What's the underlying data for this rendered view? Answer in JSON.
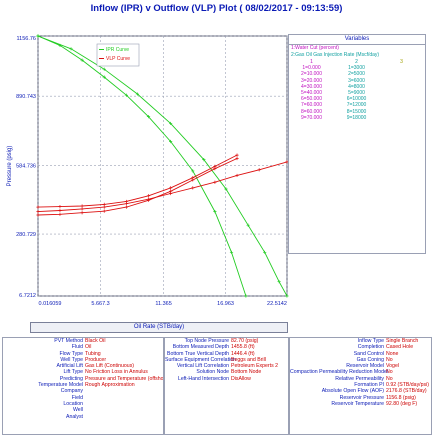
{
  "title": "Inflow (IPR) v Outflow (VLP) Plot ( 08/02/2017 - 09:13:59)",
  "x_axis_title": "Oil Rate (STB/day)",
  "y_axis_title": "Pressure (psig)",
  "legend": [
    {
      "label": "IPR Curve",
      "color": "#22cc22"
    },
    {
      "label": "VLP Curve",
      "color": "#dd1111"
    }
  ],
  "variables_panel": {
    "heading": "Variables",
    "line1": "1:Water Cut (percent)",
    "line2": "2:Gas Oil Gas Injection Rate (Mscf/day)",
    "columns": [
      "1",
      "2",
      "3"
    ],
    "rows": [
      [
        "1=0.000",
        "1=3000"
      ],
      [
        "2=10.000",
        "2=5000"
      ],
      [
        "3=20.000",
        "3=6000"
      ],
      [
        "4=30.000",
        "4=8000"
      ],
      [
        "5=40.000",
        "5=9000"
      ],
      [
        "6=50.000",
        "6=10000"
      ],
      [
        "7=60.000",
        "7=12000"
      ],
      [
        "8=60.000",
        "8=15000"
      ],
      [
        "9=70.000",
        "9=18000"
      ]
    ]
  },
  "info_boxes": {
    "left": [
      {
        "label": "PVT Method",
        "value": "Black Oil"
      },
      {
        "label": "Fluid",
        "value": "Oil"
      },
      {
        "label": "Flow Type",
        "value": "Tubing"
      },
      {
        "label": "Well Type",
        "value": "Producer"
      },
      {
        "label": "Artificial Lift",
        "value": "Gas Lift (Continuous)"
      },
      {
        "label": "Lift Type",
        "value": "No Friction Loss in Annulus"
      },
      {
        "label": "Predicting",
        "value": "Pressure and Temperature (offshore)"
      },
      {
        "label": "Temperature Model",
        "value": "Rough Approximation"
      },
      {
        "label": "Company",
        "value": ""
      },
      {
        "label": "Field",
        "value": ""
      },
      {
        "label": "Location",
        "value": ""
      },
      {
        "label": "Well",
        "value": ""
      },
      {
        "label": "Analyst",
        "value": ""
      }
    ],
    "middle": [
      {
        "label": "Top Node Pressure",
        "value": "82.70 (psig)"
      },
      {
        "label": "Bottom Measured Depth",
        "value": "1455.8 (ft)"
      },
      {
        "label": "Bottom True Vertical Depth",
        "value": "1446.4 (ft)"
      },
      {
        "label": "Surface Equipment Correlation",
        "value": "Beggs and Brill"
      },
      {
        "label": "Vertical Lift Correlation",
        "value": "Petroleum Experts 2"
      },
      {
        "label": "Solution Node",
        "value": "Bottom Node"
      },
      {
        "label": "Left-Hand Intersection",
        "value": "DisAllow"
      }
    ],
    "right": [
      {
        "label": "Inflow Type",
        "value": "Single Branch"
      },
      {
        "label": "Completion",
        "value": "Cased Hole"
      },
      {
        "label": "Sand Control",
        "value": "None"
      },
      {
        "label": "Gas Coning",
        "value": "No"
      },
      {
        "label": "Reservoir Model",
        "value": "Vogel"
      },
      {
        "label": "Compaction Permeability Reduction Model",
        "value": "No"
      },
      {
        "label": "Relative Permeability",
        "value": "No"
      },
      {
        "label": "Formation PI",
        "value": "0.92 (STB/day/psi)"
      },
      {
        "label": "Absolute Open Flow (AOF)",
        "value": "2176.8 (STB/day)"
      },
      {
        "label": "Reservoir Pressure",
        "value": "1156.8 (psig)"
      },
      {
        "label": "Reservoir Temperature",
        "value": "92.80 (deg F)"
      }
    ]
  },
  "chart_data": {
    "type": "line",
    "title": "Inflow (IPR) v Outflow (VLP) Plot ( 08/02/2017 - 09:13:59)",
    "xlabel": "Oil Rate (STB/day)",
    "ylabel": "Pressure (psig)",
    "xlim": [
      0.016059,
      22.5142
    ],
    "ylim": [
      6.7212,
      1156.76
    ],
    "x_tick_labels": [
      "0.016059",
      "5.667.3",
      "11.365",
      "16.963",
      "22.5142"
    ],
    "x_tick_values": [
      0.016059,
      5.6673,
      11.365,
      16.963,
      22.5142
    ],
    "y_tick_labels": [
      "1156.76",
      "890.743",
      "584.736",
      "280.729",
      "6.7212"
    ],
    "y_tick_values": [
      1156.76,
      890.743,
      584.736,
      280.729,
      6.7212
    ],
    "grid": true,
    "legend_position": "top-left",
    "series": [
      {
        "name": "IPR Curve",
        "color": "#22cc22",
        "x": [
          0.016,
          2.0,
          4.0,
          6.0,
          8.0,
          10.0,
          12.0,
          14.0,
          16.0,
          17.5,
          18.8
        ],
        "y": [
          1156.76,
          1115,
          1050,
          975,
          895,
          800,
          690,
          560,
          380,
          200,
          6.72
        ]
      },
      {
        "name": "IPR Curve",
        "color": "#22cc22",
        "x": [
          0.016,
          3.0,
          6.0,
          9.0,
          12.0,
          15.0,
          17.0,
          19.0,
          20.5,
          21.8,
          22.51
        ],
        "y": [
          1156.76,
          1100,
          1010,
          900,
          770,
          610,
          480,
          320,
          200,
          70,
          6.72
        ]
      },
      {
        "name": "VLP Curve",
        "color": "#dd1111",
        "x": [
          0.016,
          2.0,
          4.0,
          6.0,
          8.0,
          10.0,
          12.0,
          14.0,
          16.0,
          18.0,
          20.0,
          22.51
        ],
        "y": [
          380,
          385,
          392,
          400,
          415,
          435,
          460,
          485,
          510,
          540,
          565,
          600
        ]
      },
      {
        "name": "VLP Curve",
        "color": "#dd1111",
        "x": [
          0.016,
          2.0,
          4.0,
          6.0,
          8.0,
          10.0,
          12.0,
          14.0,
          16.0,
          18.0
        ],
        "y": [
          365,
          368,
          375,
          382,
          400,
          430,
          470,
          520,
          570,
          615
        ]
      },
      {
        "name": "VLP Curve",
        "color": "#dd1111",
        "x": [
          0.016,
          2.0,
          4.0,
          6.0,
          8.0,
          10.0,
          12.0,
          14.0,
          16.0,
          18.0
        ],
        "y": [
          400,
          402,
          405,
          412,
          425,
          450,
          485,
          530,
          580,
          630
        ]
      }
    ]
  }
}
